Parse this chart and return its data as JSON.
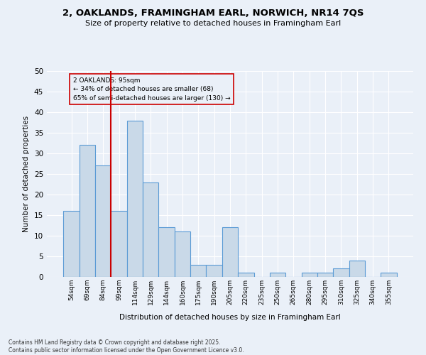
{
  "title1": "2, OAKLANDS, FRAMINGHAM EARL, NORWICH, NR14 7QS",
  "title2": "Size of property relative to detached houses in Framingham Earl",
  "xlabel": "Distribution of detached houses by size in Framingham Earl",
  "ylabel": "Number of detached properties",
  "footer1": "Contains HM Land Registry data © Crown copyright and database right 2025.",
  "footer2": "Contains public sector information licensed under the Open Government Licence v3.0.",
  "categories": [
    "54sqm",
    "69sqm",
    "84sqm",
    "99sqm",
    "114sqm",
    "129sqm",
    "144sqm",
    "160sqm",
    "175sqm",
    "190sqm",
    "205sqm",
    "220sqm",
    "235sqm",
    "250sqm",
    "265sqm",
    "280sqm",
    "295sqm",
    "310sqm",
    "325sqm",
    "340sqm",
    "355sqm"
  ],
  "values": [
    16,
    32,
    27,
    16,
    38,
    23,
    12,
    11,
    3,
    3,
    12,
    1,
    0,
    1,
    0,
    1,
    1,
    2,
    4,
    0,
    1
  ],
  "bar_color": "#c9d9e8",
  "bar_edge_color": "#5b9bd5",
  "bg_color": "#eaf0f8",
  "grid_color": "#ffffff",
  "vline_color": "#cc0000",
  "annotation_text": "2 OAKLANDS: 95sqm\n← 34% of detached houses are smaller (68)\n65% of semi-detached houses are larger (130) →",
  "annotation_box_color": "#cc0000",
  "ylim": [
    0,
    50
  ],
  "yticks": [
    0,
    5,
    10,
    15,
    20,
    25,
    30,
    35,
    40,
    45,
    50
  ]
}
